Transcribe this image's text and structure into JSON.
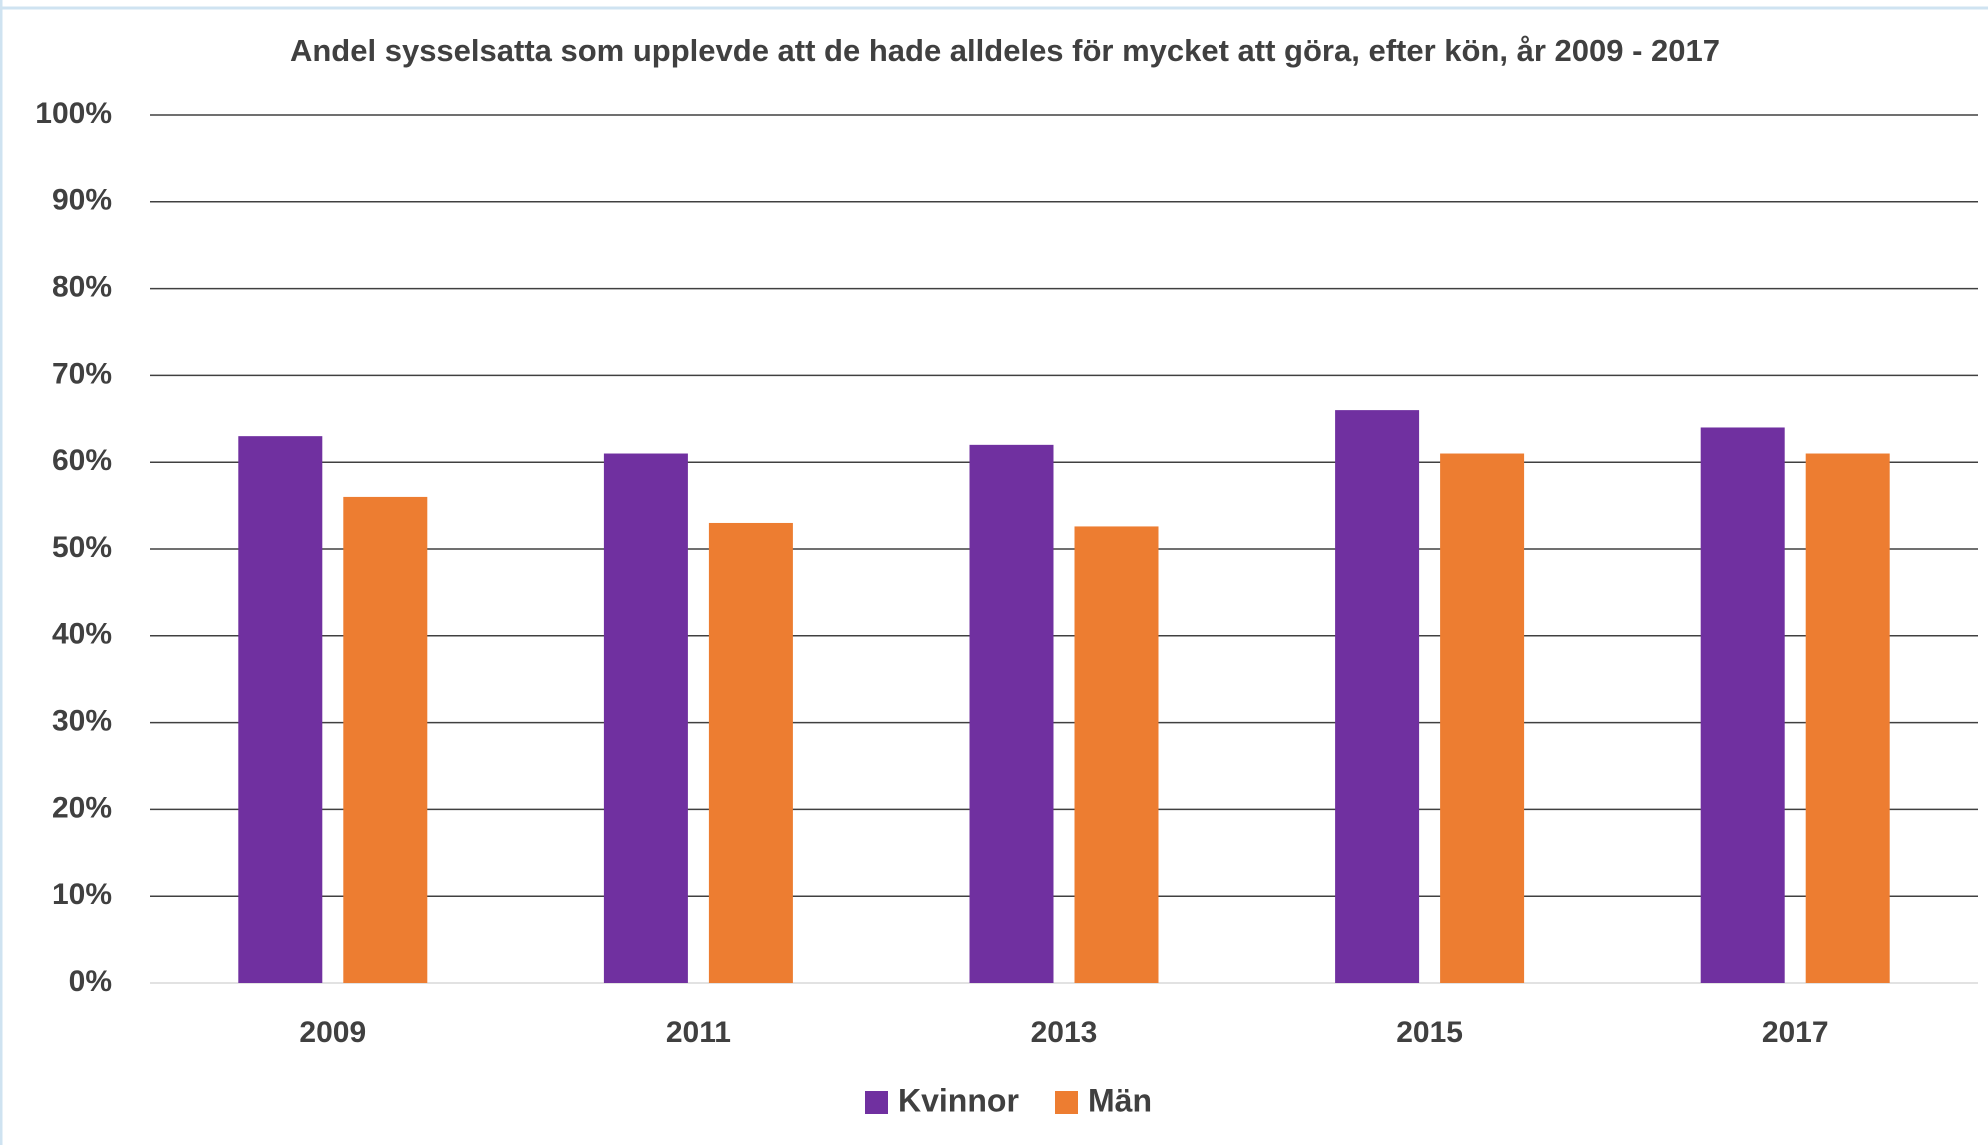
{
  "chart_data": {
    "type": "bar",
    "title": "Andel sysselsatta som upplevde att de hade alldeles för mycket att göra, efter kön, år 2009 - 2017",
    "categories": [
      "2009",
      "2011",
      "2013",
      "2015",
      "2017"
    ],
    "series": [
      {
        "name": "Kvinnor",
        "color": "#7030a0",
        "values": [
          63,
          61,
          62,
          66,
          64
        ]
      },
      {
        "name": "Män",
        "color": "#ed7d31",
        "values": [
          56,
          53,
          52.6,
          61,
          61
        ]
      }
    ],
    "ylim": [
      0,
      100
    ],
    "yticks": [
      {
        "value": 0,
        "label": "0%"
      },
      {
        "value": 10,
        "label": "10%"
      },
      {
        "value": 20,
        "label": "20%"
      },
      {
        "value": 30,
        "label": "30%"
      },
      {
        "value": 40,
        "label": "40%"
      },
      {
        "value": 50,
        "label": "50%"
      },
      {
        "value": 60,
        "label": "60%"
      },
      {
        "value": 70,
        "label": "70%"
      },
      {
        "value": 80,
        "label": "80%"
      },
      {
        "value": 90,
        "label": "90%"
      },
      {
        "value": 100,
        "label": "100%"
      }
    ],
    "grid": true,
    "legend": "bottom"
  }
}
